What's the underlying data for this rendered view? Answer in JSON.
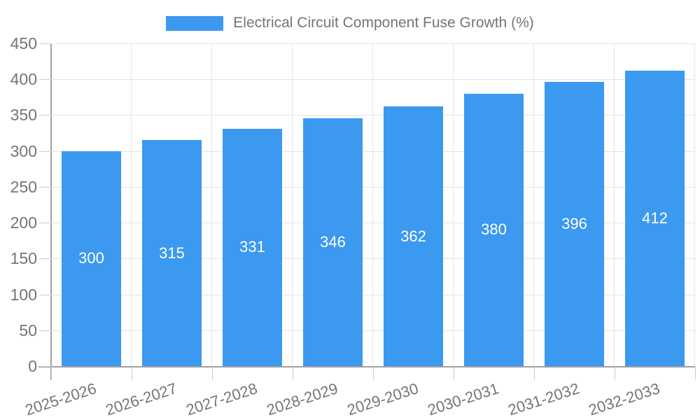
{
  "chart_data": {
    "type": "bar",
    "title": "Electrical Circuit Component Fuse Growth (%)",
    "legend": {
      "label": "Electrical Circuit Component Fuse Growth (%)",
      "position": "top"
    },
    "categories": [
      "2025-2026",
      "2026-2027",
      "2027-2028",
      "2028-2029",
      "2029-2030",
      "2030-2031",
      "2031-2032",
      "2032-2033"
    ],
    "values": [
      300,
      315,
      331,
      346,
      362,
      380,
      396,
      412
    ],
    "bar_value_labels": [
      "300",
      "315",
      "331",
      "346",
      "362",
      "380",
      "396",
      "412"
    ],
    "xlabel": "",
    "ylabel": "",
    "ylim": [
      0,
      450
    ],
    "yticks": [
      0,
      50,
      100,
      150,
      200,
      250,
      300,
      350,
      400,
      450
    ],
    "grid": "horizontal and vertical light-gray gridlines",
    "x_tick_rotation_deg": -18,
    "colors": {
      "bar": "#3B99F0",
      "bar_label": "#FFFFFF",
      "axis_line": "#A0A0A0",
      "grid_line": "#E4E4E4",
      "tick_mark": "#CCCCCC",
      "tick_label": "#757575",
      "background": "#FFFFFF"
    }
  }
}
